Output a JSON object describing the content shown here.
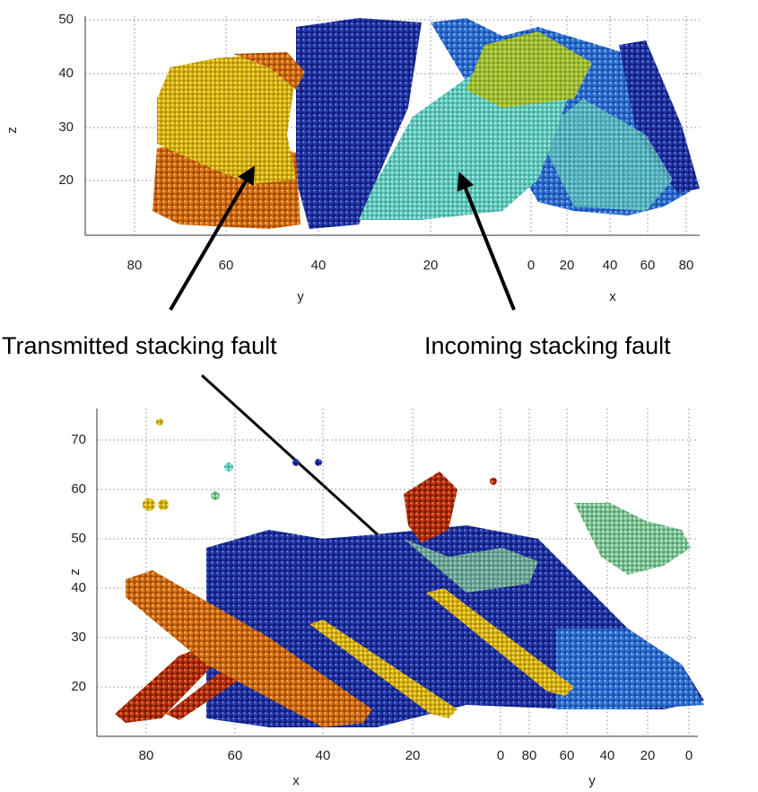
{
  "top_panel": {
    "z_label": "z",
    "z_ticks": [
      50,
      40,
      30,
      20
    ],
    "y_label": "y",
    "y_ticks": [
      80,
      60,
      40,
      20
    ],
    "x_label": "x",
    "x_ticks": [
      0,
      20,
      40,
      60,
      80
    ]
  },
  "annotations": {
    "transmitted": "Transmitted stacking fault",
    "incoming": "Incoming stacking fault"
  },
  "bottom_panel": {
    "z_label": "z",
    "z_ticks": [
      70,
      60,
      50,
      40,
      30,
      20
    ],
    "x_label": "x",
    "x_ticks": [
      80,
      60,
      40,
      20,
      0
    ],
    "y_label": "y",
    "y_ticks": [
      80,
      60,
      40,
      20,
      0
    ]
  }
}
